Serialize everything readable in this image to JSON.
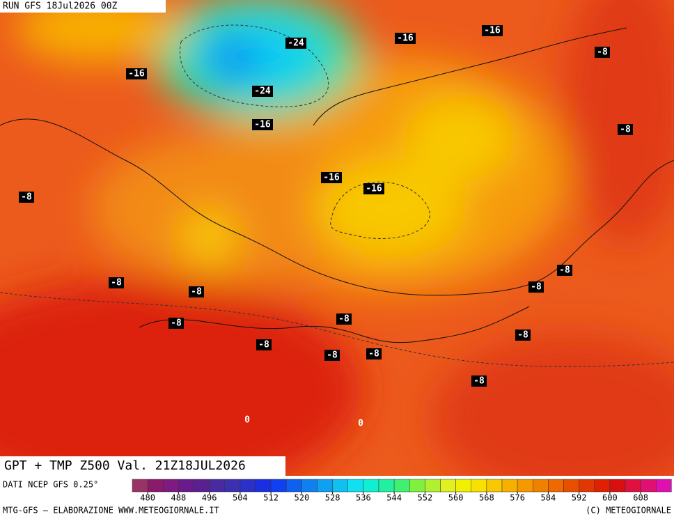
{
  "header": {
    "run": "RUN GFS 18Jul2026 00Z"
  },
  "map": {
    "contour_labels": [
      -24,
      -16,
      -16,
      -8,
      -16,
      -24,
      -16,
      -8,
      -16,
      -16,
      -8,
      -8,
      -8,
      -8,
      -8,
      -8,
      -8,
      -8,
      -8,
      -8,
      -8,
      -8,
      0,
      0
    ]
  },
  "footer": {
    "title": "GPT + TMP Z500 Val. 21Z18JUL2026",
    "source": "DATI NCEP GFS 0.25°",
    "credits_left": "MTG-GFS — ELABORAZIONE WWW.METEOGIORNALE.IT",
    "credits_right": "(C) METEOGIORNALE"
  },
  "colorbar": {
    "ticks": [
      480,
      488,
      496,
      504,
      512,
      520,
      528,
      536,
      544,
      552,
      560,
      568,
      576,
      584,
      592,
      600,
      608
    ],
    "colors": [
      "#993366",
      "#8b1a6b",
      "#7f1a80",
      "#6a1a8c",
      "#5a2090",
      "#4a2aa0",
      "#3a30b0",
      "#2a30c8",
      "#1a30e0",
      "#1040f0",
      "#1060f0",
      "#1080f0",
      "#10a0f0",
      "#10c0f0",
      "#10e0f0",
      "#10f0d0",
      "#20f0a0",
      "#40f070",
      "#80f040",
      "#b0f030",
      "#e0f020",
      "#f0f000",
      "#f8e000",
      "#f8c800",
      "#f8b000",
      "#f89800",
      "#f08000",
      "#f06800",
      "#e85000",
      "#e03800",
      "#e02000",
      "#d81010",
      "#e01040",
      "#e01070",
      "#e010b0"
    ]
  }
}
